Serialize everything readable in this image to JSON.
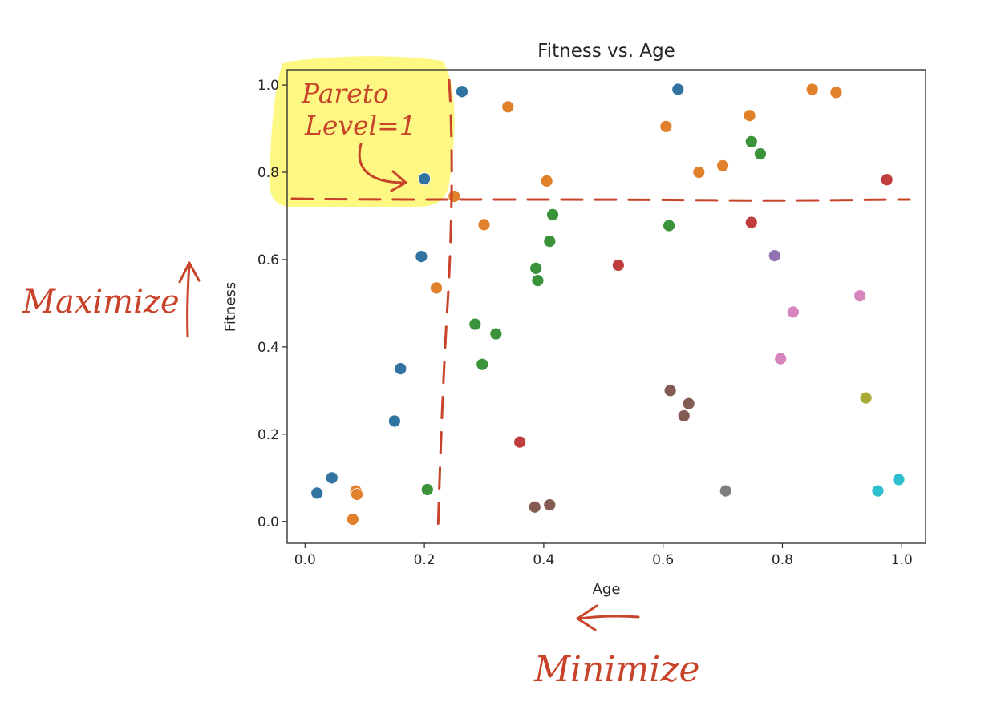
{
  "chart_data": {
    "type": "scatter",
    "title": "Fitness vs. Age",
    "xlabel": "Age",
    "ylabel": "Fitness",
    "xlim": [
      -0.03,
      1.04
    ],
    "ylim": [
      -0.05,
      1.035
    ],
    "xticks": [
      "0.0",
      "0.2",
      "0.4",
      "0.6",
      "0.8",
      "1.0"
    ],
    "yticks": [
      "0.0",
      "0.2",
      "0.4",
      "0.6",
      "0.8",
      "1.0"
    ],
    "grid": false,
    "legend": "none",
    "points": [
      {
        "x": 0.02,
        "y": 0.065,
        "color": "#3274a1"
      },
      {
        "x": 0.045,
        "y": 0.1,
        "color": "#3274a1"
      },
      {
        "x": 0.15,
        "y": 0.23,
        "color": "#3274a1"
      },
      {
        "x": 0.16,
        "y": 0.35,
        "color": "#3274a1"
      },
      {
        "x": 0.195,
        "y": 0.607,
        "color": "#3274a1"
      },
      {
        "x": 0.2,
        "y": 0.785,
        "color": "#3274a1"
      },
      {
        "x": 0.263,
        "y": 0.985,
        "color": "#3274a1"
      },
      {
        "x": 0.625,
        "y": 0.99,
        "color": "#3274a1"
      },
      {
        "x": 0.08,
        "y": 0.005,
        "color": "#e1812c"
      },
      {
        "x": 0.085,
        "y": 0.07,
        "color": "#e1812c"
      },
      {
        "x": 0.087,
        "y": 0.062,
        "color": "#e1812c"
      },
      {
        "x": 0.22,
        "y": 0.535,
        "color": "#e1812c"
      },
      {
        "x": 0.25,
        "y": 0.745,
        "color": "#e1812c"
      },
      {
        "x": 0.3,
        "y": 0.68,
        "color": "#e1812c"
      },
      {
        "x": 0.34,
        "y": 0.95,
        "color": "#e1812c"
      },
      {
        "x": 0.405,
        "y": 0.78,
        "color": "#e1812c"
      },
      {
        "x": 0.605,
        "y": 0.905,
        "color": "#e1812c"
      },
      {
        "x": 0.66,
        "y": 0.8,
        "color": "#e1812c"
      },
      {
        "x": 0.7,
        "y": 0.815,
        "color": "#e1812c"
      },
      {
        "x": 0.745,
        "y": 0.93,
        "color": "#e1812c"
      },
      {
        "x": 0.85,
        "y": 0.99,
        "color": "#e1812c"
      },
      {
        "x": 0.89,
        "y": 0.983,
        "color": "#e1812c"
      },
      {
        "x": 0.205,
        "y": 0.073,
        "color": "#3a923a"
      },
      {
        "x": 0.285,
        "y": 0.452,
        "color": "#3a923a"
      },
      {
        "x": 0.297,
        "y": 0.36,
        "color": "#3a923a"
      },
      {
        "x": 0.32,
        "y": 0.43,
        "color": "#3a923a"
      },
      {
        "x": 0.387,
        "y": 0.58,
        "color": "#3a923a"
      },
      {
        "x": 0.39,
        "y": 0.552,
        "color": "#3a923a"
      },
      {
        "x": 0.41,
        "y": 0.642,
        "color": "#3a923a"
      },
      {
        "x": 0.415,
        "y": 0.703,
        "color": "#3a923a"
      },
      {
        "x": 0.61,
        "y": 0.678,
        "color": "#3a923a"
      },
      {
        "x": 0.748,
        "y": 0.87,
        "color": "#3a923a"
      },
      {
        "x": 0.763,
        "y": 0.842,
        "color": "#3a923a"
      },
      {
        "x": 0.36,
        "y": 0.182,
        "color": "#c03d3e"
      },
      {
        "x": 0.525,
        "y": 0.587,
        "color": "#c03d3e"
      },
      {
        "x": 0.748,
        "y": 0.685,
        "color": "#c03d3e"
      },
      {
        "x": 0.975,
        "y": 0.783,
        "color": "#c03d3e"
      },
      {
        "x": 0.787,
        "y": 0.609,
        "color": "#9372b2"
      },
      {
        "x": 0.385,
        "y": 0.033,
        "color": "#845b53"
      },
      {
        "x": 0.41,
        "y": 0.038,
        "color": "#845b53"
      },
      {
        "x": 0.612,
        "y": 0.3,
        "color": "#845b53"
      },
      {
        "x": 0.635,
        "y": 0.242,
        "color": "#845b53"
      },
      {
        "x": 0.643,
        "y": 0.27,
        "color": "#845b53"
      },
      {
        "x": 0.797,
        "y": 0.373,
        "color": "#d684bd"
      },
      {
        "x": 0.818,
        "y": 0.48,
        "color": "#d684bd"
      },
      {
        "x": 0.93,
        "y": 0.517,
        "color": "#d684bd"
      },
      {
        "x": 0.705,
        "y": 0.07,
        "color": "#7f7f7f"
      },
      {
        "x": 0.94,
        "y": 0.283,
        "color": "#a9aa35"
      },
      {
        "x": 0.96,
        "y": 0.07,
        "color": "#2ebece"
      },
      {
        "x": 0.995,
        "y": 0.096,
        "color": "#2ebece"
      }
    ]
  },
  "annotations": {
    "pareto_label_line1": "Pareto",
    "pareto_label_line2": "Level=1",
    "maximize": "Maximize",
    "minimize": "Minimize"
  },
  "colors": {
    "annotation": "#c8432a",
    "highlight": "#fbf55a"
  }
}
